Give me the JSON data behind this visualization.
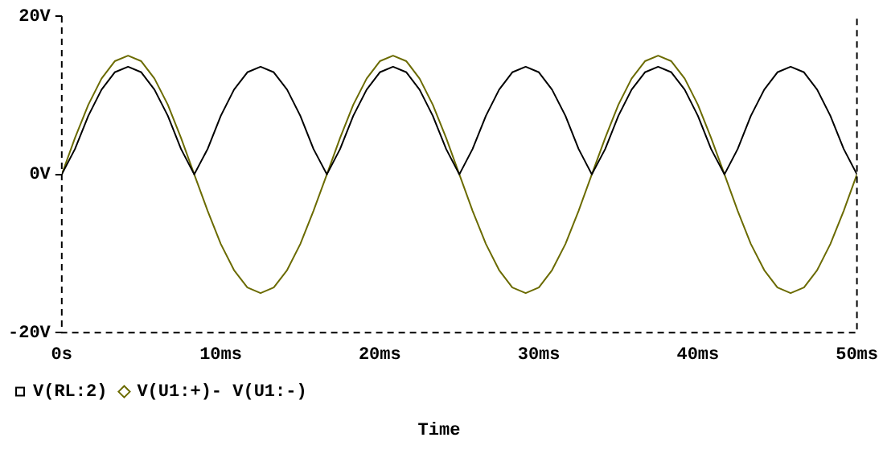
{
  "chart_data": {
    "type": "line",
    "xlabel": "Time",
    "x": [
      0,
      0.83,
      1.67,
      2.5,
      3.33,
      4.17,
      5,
      5.83,
      6.67,
      7.5,
      8.33,
      9.17,
      10,
      10.83,
      11.67,
      12.5,
      13.33,
      14.17,
      15,
      15.83,
      16.67,
      17.5,
      18.33,
      19.17,
      20,
      20.83,
      21.67,
      22.5,
      23.33,
      24.17,
      25,
      25.83,
      26.67,
      27.5,
      28.33,
      29.17,
      30,
      30.83,
      31.67,
      32.5,
      33.33,
      34.17,
      35,
      35.83,
      36.67,
      37.5,
      38.33,
      39.17,
      40,
      40.83,
      41.67,
      42.5,
      43.33,
      44.17,
      45,
      45.83,
      46.67,
      47.5,
      48.33,
      49.17,
      50
    ],
    "series": [
      {
        "name": "V(RL:2)",
        "color": "#000000",
        "values": [
          0,
          3.2,
          7.4,
          10.7,
          12.9,
          13.6,
          12.9,
          10.7,
          7.4,
          3.2,
          0,
          3.2,
          7.4,
          10.7,
          12.9,
          13.6,
          12.9,
          10.7,
          7.4,
          3.2,
          0,
          3.2,
          7.4,
          10.7,
          12.9,
          13.6,
          12.9,
          10.7,
          7.4,
          3.2,
          0,
          3.2,
          7.4,
          10.7,
          12.9,
          13.6,
          12.9,
          10.7,
          7.4,
          3.2,
          0,
          3.2,
          7.4,
          10.7,
          12.9,
          13.6,
          12.9,
          10.7,
          7.4,
          3.2,
          0,
          3.2,
          7.4,
          10.7,
          12.9,
          13.6,
          12.9,
          10.7,
          7.4,
          3.2,
          0
        ]
      },
      {
        "name": "V(U1:+)- V(U1:-)",
        "color": "#6b6b00",
        "values": [
          0,
          4.6,
          8.8,
          12.1,
          14.3,
          15,
          14.3,
          12.1,
          8.8,
          4.6,
          0,
          -4.6,
          -8.8,
          -12.1,
          -14.3,
          -15,
          -14.3,
          -12.1,
          -8.8,
          -4.6,
          0,
          4.6,
          8.8,
          12.1,
          14.3,
          15,
          14.3,
          12.1,
          8.8,
          4.6,
          0,
          -4.6,
          -8.8,
          -12.1,
          -14.3,
          -15,
          -14.3,
          -12.1,
          -8.8,
          -4.6,
          0,
          4.6,
          8.8,
          12.1,
          14.3,
          15,
          14.3,
          12.1,
          8.8,
          4.6,
          0,
          -4.6,
          -8.8,
          -12.1,
          -14.3,
          -15,
          -14.3,
          -12.1,
          -8.8,
          -4.6,
          0
        ]
      }
    ],
    "xlim": [
      0,
      50
    ],
    "xticks": [
      {
        "value": 0,
        "label": "0s"
      },
      {
        "value": 10,
        "label": "10ms"
      },
      {
        "value": 20,
        "label": "20ms"
      },
      {
        "value": 30,
        "label": "30ms"
      },
      {
        "value": 40,
        "label": "40ms"
      },
      {
        "value": 50,
        "label": "50ms"
      }
    ],
    "ylim": [
      -20,
      20
    ],
    "yticks": [
      {
        "value": -20,
        "label": "-20V"
      },
      {
        "value": 0,
        "label": "0V"
      },
      {
        "value": 20,
        "label": "20V"
      }
    ],
    "legend": "bottom",
    "line_style": "solid"
  }
}
